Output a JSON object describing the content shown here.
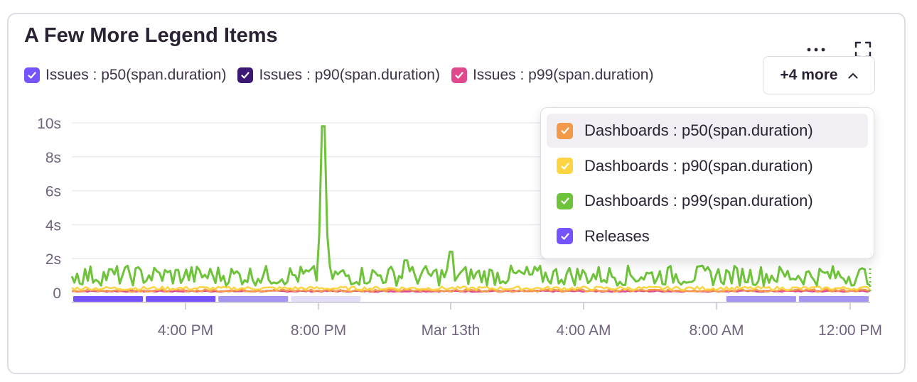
{
  "widget": {
    "title": "A Few More Legend Items",
    "menu_icon": "ellipsis-icon",
    "expand_icon": "fullscreen-icon"
  },
  "legend": {
    "visible_items": [
      {
        "label": "Issues : p50(span.duration)",
        "color": "#7553ff",
        "checked": true
      },
      {
        "label": "Issues : p90(span.duration)",
        "color": "#3a1873",
        "checked": true
      },
      {
        "label": "Issues : p99(span.duration)",
        "color": "#e1498f",
        "checked": true
      }
    ],
    "more_button": {
      "label": "+4 more",
      "icon": "chevron-up-icon"
    }
  },
  "dropdown": {
    "items": [
      {
        "label": "Dashboards : p50(span.duration)",
        "color": "#f2994a",
        "checked": true,
        "highlighted": true
      },
      {
        "label": "Dashboards : p90(span.duration)",
        "color": "#fdd442",
        "checked": true
      },
      {
        "label": "Dashboards : p99(span.duration)",
        "color": "#6fc33b",
        "checked": true
      },
      {
        "label": "Releases",
        "color": "#7553ff",
        "checked": true
      }
    ]
  },
  "chart_data": {
    "type": "line",
    "y_ticks": [
      "10s",
      "8s",
      "6s",
      "4s",
      "2s",
      "0"
    ],
    "x_ticks": [
      "4:00 PM",
      "8:00 PM",
      "Mar 13th",
      "4:00 AM",
      "8:00 AM",
      "12:00 PM"
    ],
    "ylim": [
      0,
      10
    ],
    "y_unit": "s",
    "grid": true,
    "series": [
      {
        "color": "#6fc33b",
        "baseline": 1.0,
        "spikes": [
          {
            "at": 0.315,
            "value": 9.8
          },
          {
            "at": 0.474,
            "value": 2.4
          },
          {
            "at": 0.419,
            "value": 1.9
          }
        ]
      },
      {
        "color": "#fdd442",
        "baseline": 0.25
      },
      {
        "color": "#f2994a",
        "baseline": 0.12
      },
      {
        "color": "#e1498f",
        "baseline": 0.08
      }
    ],
    "releases_colors": [
      "#7553ff",
      "#7553ff",
      "#a594f2",
      "#e3ddf7",
      "#ffffff",
      "#ffffff",
      "#ffffff",
      "#ffffff",
      "#ffffff",
      "#a594f2",
      "#a594f2"
    ]
  }
}
